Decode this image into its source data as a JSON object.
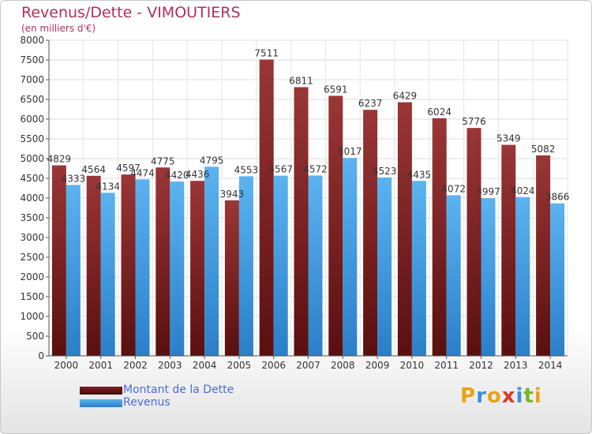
{
  "header": {
    "title": "Revenus/Dette - VIMOUTIERS",
    "subtitle": "(en milliers d'€)"
  },
  "chart_data": {
    "type": "bar",
    "title": "Revenus/Dette - VIMOUTIERS",
    "subtitle": "(en milliers d'€)",
    "xlabel": "",
    "ylabel": "",
    "ylim": [
      0,
      8000
    ],
    "ytick_step": 500,
    "grid": true,
    "legend_position": "bottom-left",
    "categories": [
      "2000",
      "2001",
      "2002",
      "2003",
      "2004",
      "2005",
      "2006",
      "2007",
      "2008",
      "2009",
      "2010",
      "2011",
      "2012",
      "2013",
      "2014"
    ],
    "series": [
      {
        "name": "Montant de la Dette",
        "color": "#8b2a2a",
        "values": [
          4829,
          4564,
          4597,
          4775,
          4436,
          3943,
          7511,
          6811,
          6591,
          6237,
          6429,
          6024,
          5776,
          5349,
          5082
        ]
      },
      {
        "name": "Revenus",
        "color": "#4aa3e8",
        "values": [
          4333,
          4134,
          4474,
          4420,
          4795,
          4553,
          4567,
          4572,
          5017,
          4523,
          4435,
          4072,
          3997,
          4024,
          3866
        ]
      }
    ]
  },
  "legend": {
    "items": [
      {
        "label": "Montant de la Dette",
        "color": "#8b2a2a"
      },
      {
        "label": "Revenus",
        "color": "#4aa3e8"
      }
    ]
  },
  "logo": {
    "text": "Proxiti",
    "letters": [
      "P",
      "r",
      "o",
      "x",
      "i",
      "t",
      "i"
    ],
    "colors": [
      "#e8a21a",
      "#3a8fd8",
      "#e8a21a",
      "#d83a2a",
      "#3a8fd8",
      "#7ab52a",
      "#e8a21a"
    ]
  }
}
